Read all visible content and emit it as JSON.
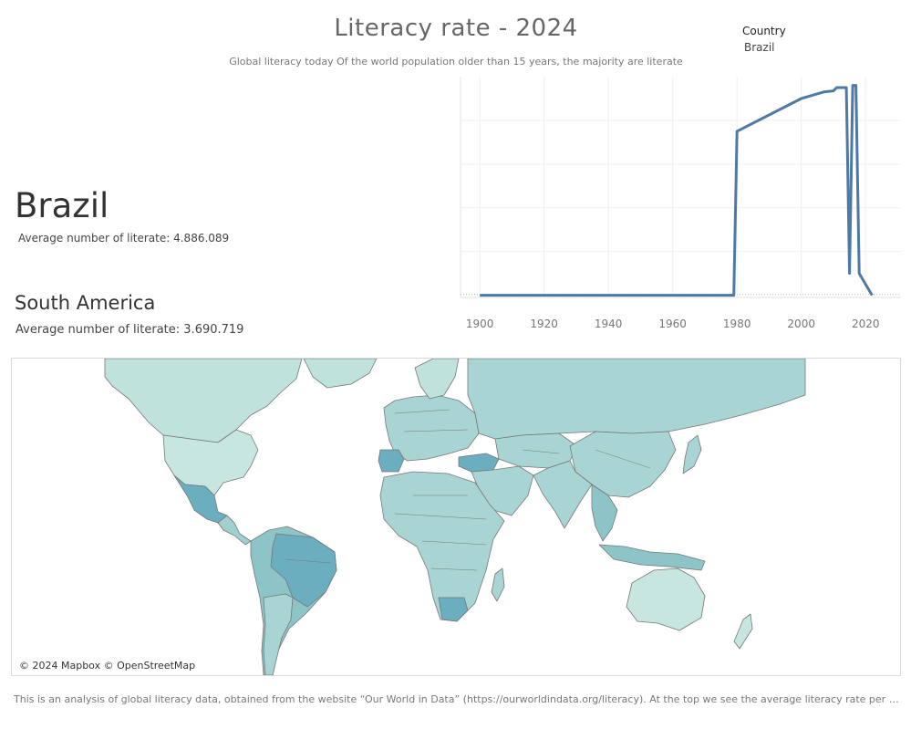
{
  "header": {
    "title": "Literacy rate -  2024",
    "subtitle": "Global literacy today Of the world population older than 15 years, the majority are literate"
  },
  "filter": {
    "label": "Country",
    "value": "Brazil"
  },
  "country_panel": {
    "name": "Brazil",
    "average": "Average number of literate: 4.886.089"
  },
  "region_panel": {
    "name": "South America",
    "average": "Average number of literate: 3.690.719"
  },
  "map": {
    "credit": "© 2024 Mapbox © OpenStreetMap"
  },
  "footer": {
    "text": "This is an analysis of global literacy data, obtained from the website “Our World in Data” (https://ourworldindata.org/literacy). At the top we see the average literacy rate per country on i.."
  },
  "colors": {
    "line": "#4e79a7",
    "map_land": "#a8d5d3",
    "map_dark": "#6aaec0",
    "map_water": "#ffffff"
  },
  "chart_data": {
    "type": "line",
    "title": "",
    "xlabel": "",
    "ylabel": "",
    "x": [
      1900,
      1979,
      1980,
      2000,
      2007,
      2010,
      2011,
      2014,
      2015,
      2016,
      2017,
      2018,
      2022
    ],
    "series": [
      {
        "name": "Brazil",
        "values": [
          0,
          0,
          75,
          90,
          93,
          93.5,
          95,
          95,
          10,
          96,
          96,
          10,
          0
        ]
      }
    ],
    "xlim": [
      1894,
      2031
    ],
    "ylim": [
      -1,
      100
    ],
    "xticks": [
      1900,
      1920,
      1940,
      1960,
      1980,
      2000,
      2020
    ],
    "grid": true
  }
}
